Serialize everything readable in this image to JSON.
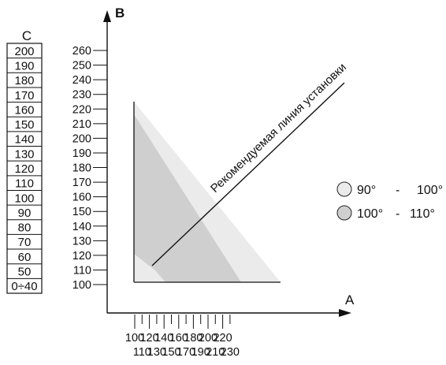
{
  "axes": {
    "x_title": "A",
    "y_title": "B",
    "c_title": "C"
  },
  "y_ticks": [
    "260",
    "250",
    "240",
    "230",
    "220",
    "210",
    "200",
    "190",
    "180",
    "170",
    "160",
    "150",
    "140",
    "130",
    "120",
    "110",
    "100"
  ],
  "x_ticks_top": [
    "100",
    "120",
    "140",
    "160",
    "180",
    "200",
    "220"
  ],
  "x_ticks_bottom": [
    "110",
    "130",
    "150",
    "170",
    "190",
    "210",
    "230"
  ],
  "c_scale": [
    "200",
    "190",
    "180",
    "170",
    "160",
    "150",
    "140",
    "130",
    "120",
    "110",
    "100",
    "90",
    "80",
    "70",
    "60",
    "50",
    "0÷40"
  ],
  "recommended_line_label": "Рекомендуемая линия установки",
  "legend": [
    {
      "from": "90°",
      "dash": "-",
      "to": "100°",
      "color": "#ebebeb"
    },
    {
      "from": "100°",
      "dash": "-",
      "to": "110°",
      "color": "#cfcfcf"
    }
  ],
  "colors": {
    "zone_light": "#ebebeb",
    "zone_dark": "#cfcfcf",
    "line": "#111111"
  }
}
